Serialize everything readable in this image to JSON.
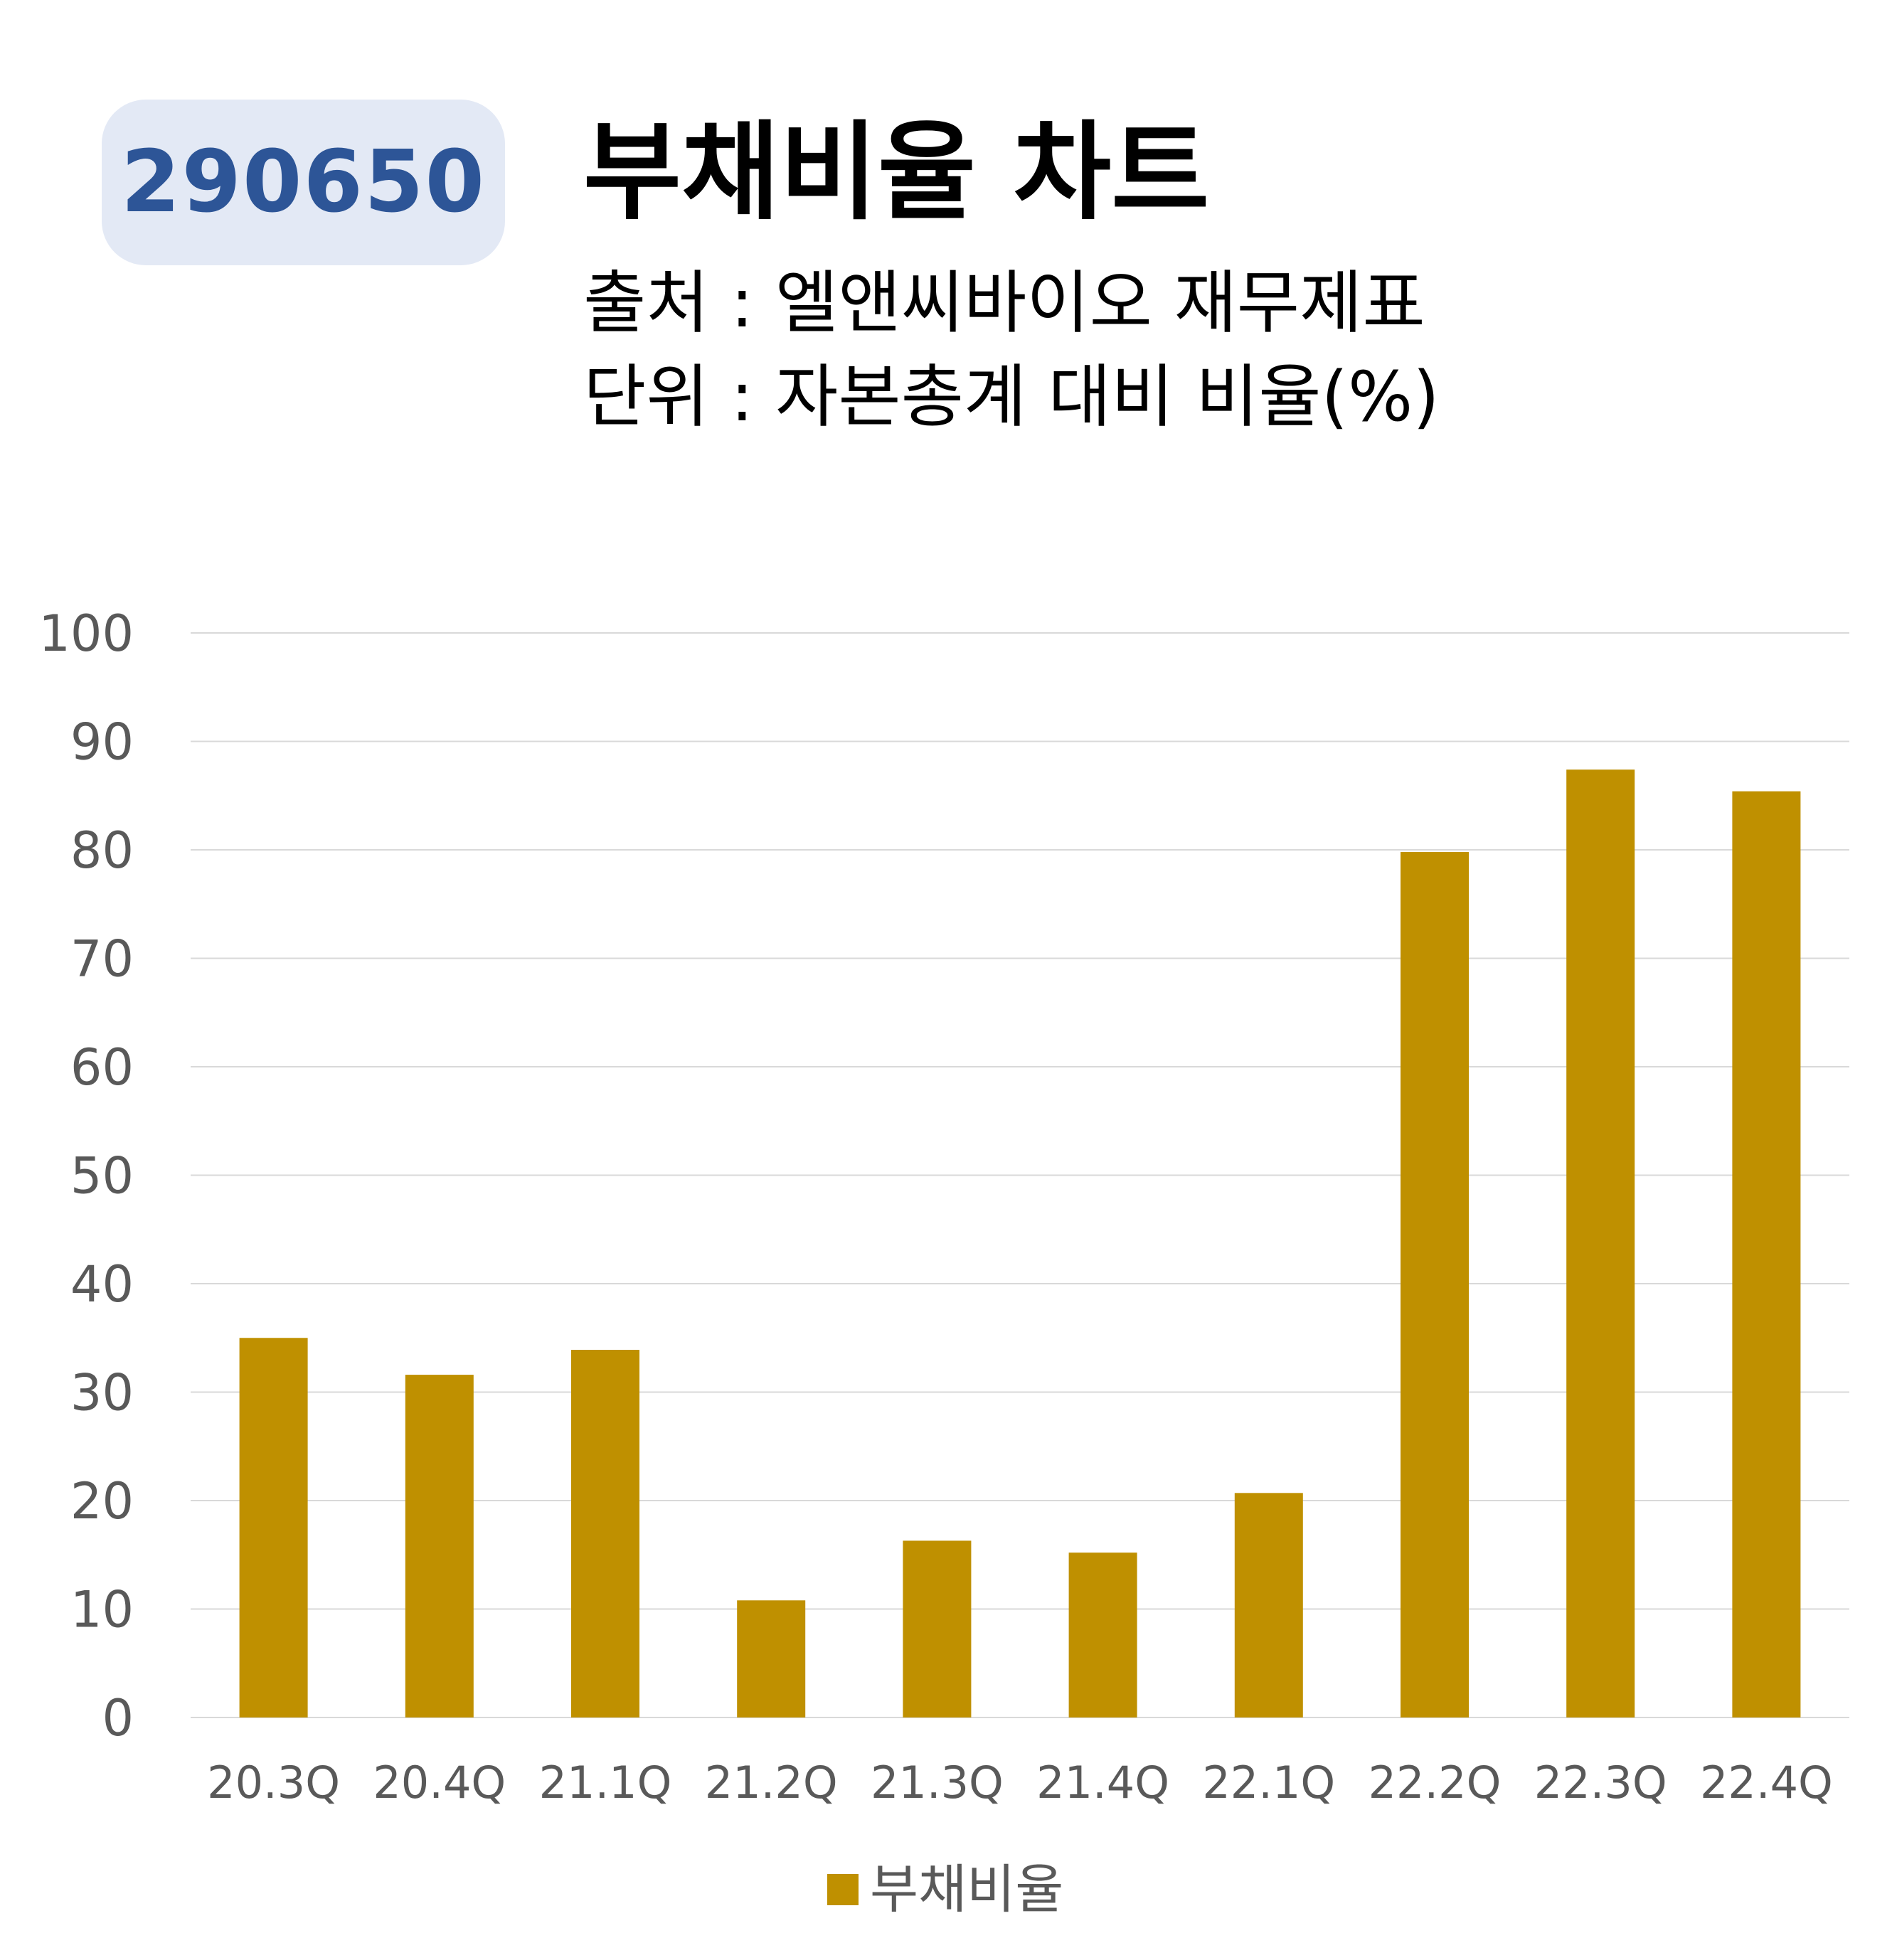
{
  "header": {
    "code": "290650",
    "title": "부채비율 차트",
    "source": "출처 : 엘앤씨바이오 재무제표",
    "unit": "단위 : 자본총계 대비 비율(%)"
  },
  "colors": {
    "bar": "#bf9000",
    "badge_bg": "#e3e9f5",
    "badge_text": "#2d5597",
    "grid": "#d9d9d9",
    "tick_text": "#595959"
  },
  "chart_data": {
    "type": "bar",
    "categories": [
      "20.3Q",
      "20.4Q",
      "21.1Q",
      "21.2Q",
      "21.3Q",
      "21.4Q",
      "22.1Q",
      "22.2Q",
      "22.3Q",
      "22.4Q"
    ],
    "series": [
      {
        "name": "부채비율",
        "values": [
          35.0,
          31.6,
          33.9,
          10.8,
          16.3,
          15.2,
          20.7,
          79.8,
          87.4,
          85.4
        ]
      }
    ],
    "yticks": [
      "0",
      "10",
      "20",
      "30",
      "40",
      "50",
      "60",
      "70",
      "80",
      "90",
      "100"
    ],
    "ylim": [
      0,
      100
    ],
    "grid": true,
    "legend_position": "bottom"
  }
}
